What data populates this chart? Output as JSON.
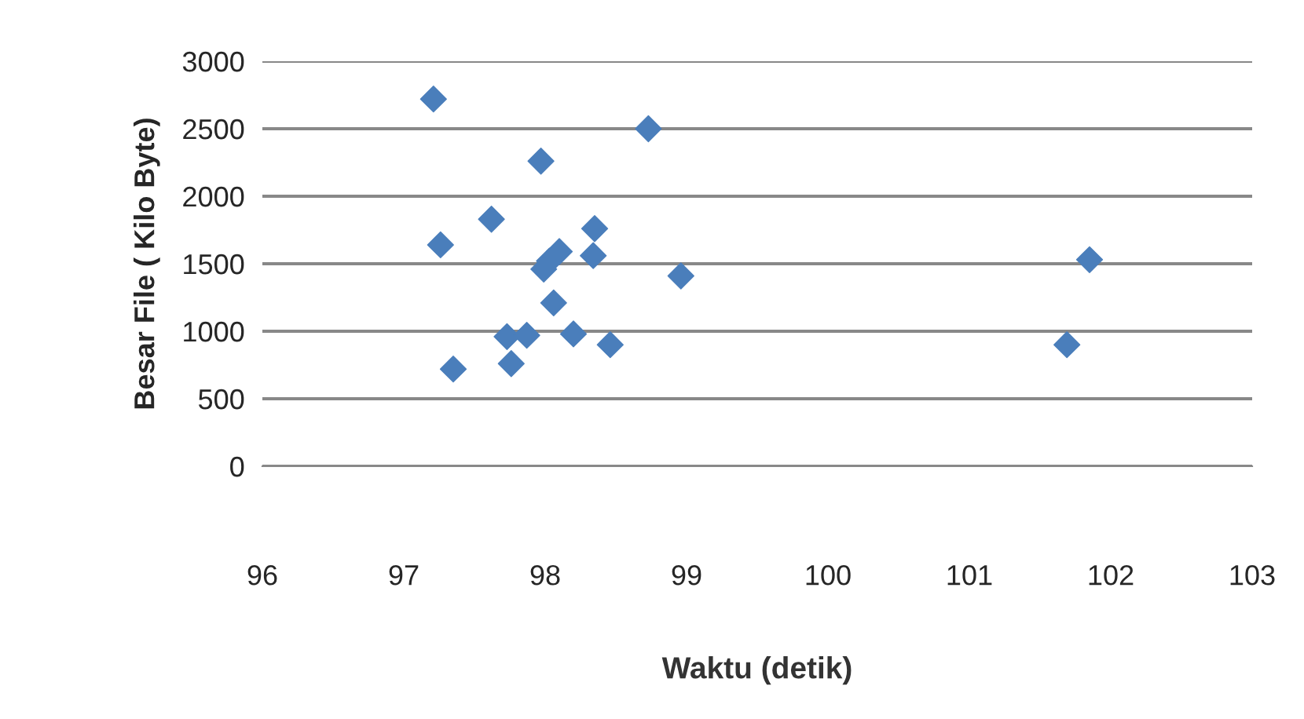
{
  "chart_data": {
    "type": "scatter",
    "xlabel": "Waktu (detik)",
    "ylabel": "Besar File ( Kilo Byte)",
    "x": [
      97.21,
      98.73,
      97.97,
      97.62,
      97.26,
      98.35,
      98.34,
      98.1,
      98.03,
      97.99,
      98.96,
      98.06,
      97.73,
      97.87,
      98.2,
      98.46,
      97.35,
      97.76,
      101.85,
      101.69
    ],
    "values": [
      2720,
      2500,
      2260,
      1830,
      1640,
      1760,
      1560,
      1590,
      1520,
      1460,
      1410,
      1210,
      960,
      970,
      980,
      900,
      720,
      760,
      1530,
      900
    ],
    "color": "#4a7ebb",
    "marker": "diamond",
    "grid": "y",
    "xlim": [
      96,
      103
    ],
    "xticks": [
      96,
      97,
      98,
      99,
      100,
      101,
      102,
      103
    ],
    "ylim": [
      0,
      3000
    ],
    "yticks": [
      0,
      500,
      1000,
      1500,
      2000,
      2500,
      3000
    ]
  }
}
